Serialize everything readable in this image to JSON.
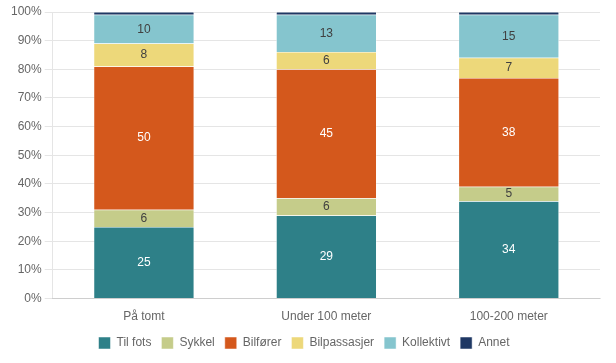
{
  "chart_data": {
    "type": "bar",
    "stacked": true,
    "data_labels": true,
    "grid": true,
    "legend": "bottom",
    "categories": [
      "På tomt",
      "Under 100 meter",
      "100-200 meter"
    ],
    "series": [
      {
        "name": "Til fots",
        "color": "#2E8088",
        "values": [
          25,
          29,
          34
        ]
      },
      {
        "name": "Sykkel",
        "color": "#C5CC8A",
        "values": [
          6,
          6,
          5
        ]
      },
      {
        "name": "Bilfører",
        "color": "#D4581C",
        "values": [
          50,
          45,
          38
        ]
      },
      {
        "name": "Bilpassasjer",
        "color": "#EDD87A",
        "values": [
          8,
          6,
          7
        ]
      },
      {
        "name": "Kollektivt",
        "color": "#85C5CE",
        "values": [
          10,
          13,
          15
        ]
      },
      {
        "name": "Annet",
        "color": "#1F3864",
        "values": [
          1,
          1,
          1
        ],
        "data_labels": false
      }
    ],
    "ylim": [
      0,
      100
    ],
    "yticks": [
      {
        "value": 0,
        "label": "0%"
      },
      {
        "value": 10,
        "label": "10%"
      },
      {
        "value": 20,
        "label": "20%"
      },
      {
        "value": 30,
        "label": "30%"
      },
      {
        "value": 40,
        "label": "40%"
      },
      {
        "value": 50,
        "label": "50%"
      },
      {
        "value": 60,
        "label": "60%"
      },
      {
        "value": 70,
        "label": "70%"
      },
      {
        "value": 80,
        "label": "80%"
      },
      {
        "value": 90,
        "label": "90%"
      },
      {
        "value": 100,
        "label": "100%"
      }
    ]
  }
}
